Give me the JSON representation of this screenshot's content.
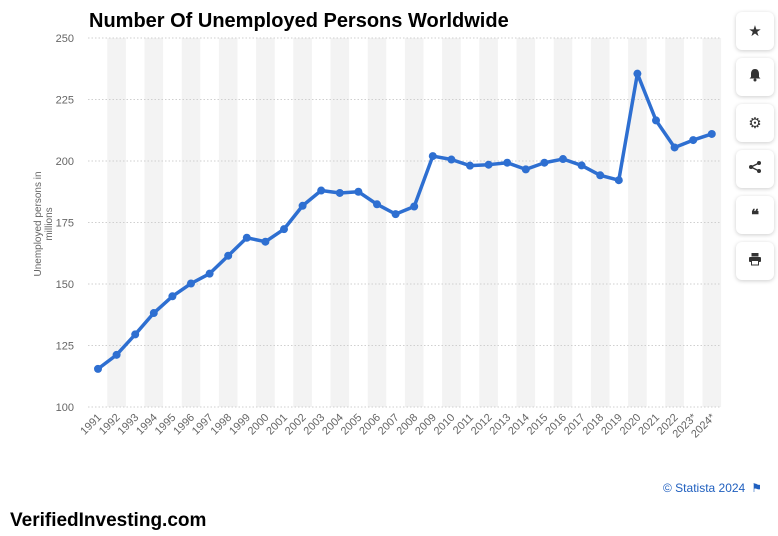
{
  "title": "Number Of Unemployed Persons Worldwide",
  "watermark": "VerifiedInvesting.com",
  "credit": "© Statista 2024",
  "sidebar": {
    "icons": [
      "star-icon",
      "bell-icon",
      "gear-icon",
      "share-icon",
      "quote-icon",
      "print-icon"
    ]
  },
  "colors": {
    "line": "#2e6fd1",
    "band": "#f3f3f3",
    "grid": "#cfcfcf"
  },
  "chart_data": {
    "type": "line",
    "title": "Number Of Unemployed Persons Worldwide",
    "ylabel": "Unemployed persons in millions",
    "xlabel": "",
    "ylim": [
      100,
      250
    ],
    "yticks": [
      100,
      125,
      150,
      175,
      200,
      225,
      250
    ],
    "grid": true,
    "categories": [
      "1991",
      "1992",
      "1993",
      "1994",
      "1995",
      "1996",
      "1997",
      "1998",
      "1999",
      "2000",
      "2001",
      "2002",
      "2003",
      "2004",
      "2005",
      "2006",
      "2007",
      "2008",
      "2009",
      "2010",
      "2011",
      "2012",
      "2013",
      "2014",
      "2015",
      "2016",
      "2017",
      "2018",
      "2019",
      "2020",
      "2021",
      "2022",
      "2023*",
      "2024*"
    ],
    "series": [
      {
        "values": [
          115.5,
          121.2,
          129.5,
          138.2,
          145,
          150.2,
          154.2,
          161.5,
          168.8,
          167.2,
          172.3,
          181.8,
          188,
          187,
          187.5,
          182.4,
          178.4,
          181.5,
          202,
          200.6,
          198.1,
          198.5,
          199.3,
          196.6,
          199.3,
          200.8,
          198.2,
          194.2,
          192.2,
          235.5,
          216.5,
          205.5,
          208.5,
          211
        ]
      }
    ]
  }
}
